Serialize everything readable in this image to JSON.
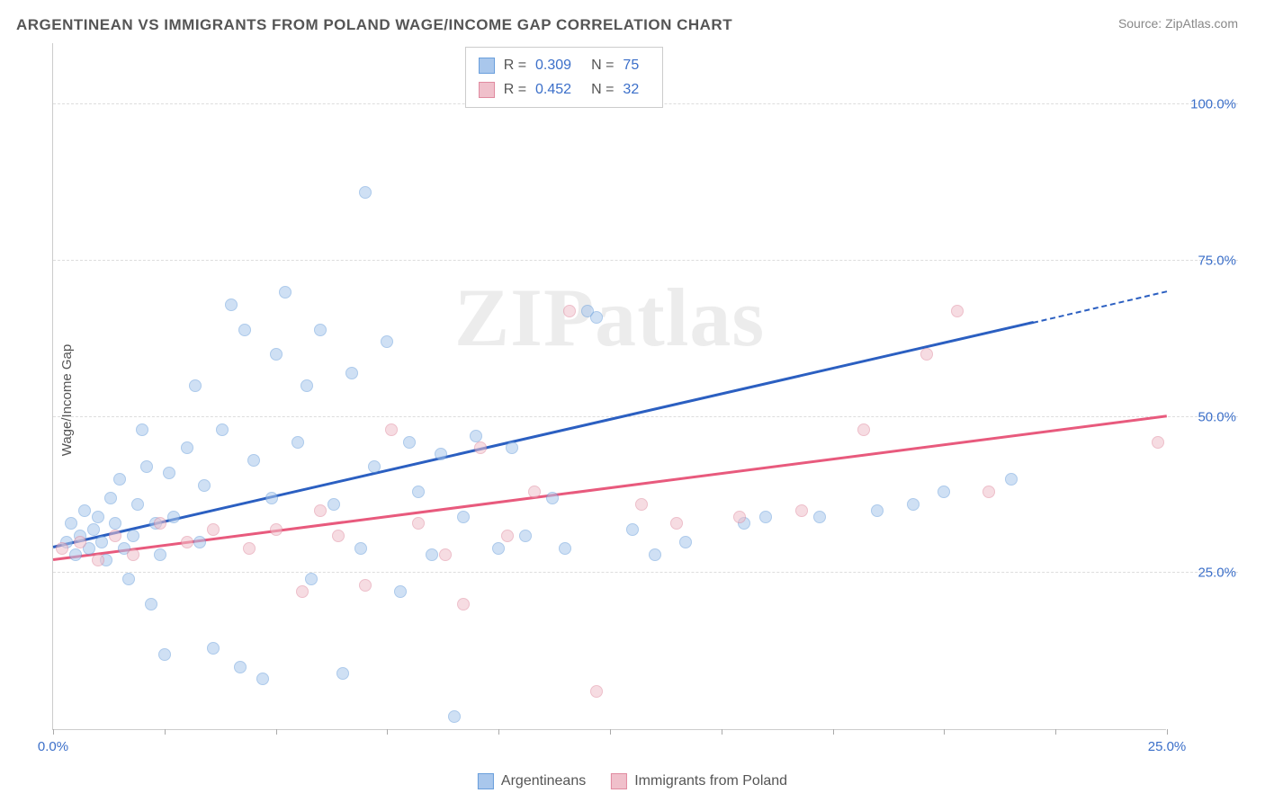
{
  "title": "ARGENTINEAN VS IMMIGRANTS FROM POLAND WAGE/INCOME GAP CORRELATION CHART",
  "source": "Source: ZipAtlas.com",
  "watermark": "ZIPatlas",
  "ylabel": "Wage/Income Gap",
  "chart": {
    "type": "scatter",
    "background_color": "#ffffff",
    "grid_color": "#dddddd",
    "grid_dashed": true,
    "xlim": [
      0,
      25
    ],
    "ylim": [
      0,
      110
    ],
    "xtick_positions": [
      0,
      2.5,
      5,
      7.5,
      10,
      12.5,
      15,
      17.5,
      20,
      22.5,
      25
    ],
    "xtick_labels": {
      "0": "0.0%",
      "25": "25.0%"
    },
    "ytick_positions": [
      25,
      50,
      75,
      100
    ],
    "ytick_labels": [
      "25.0%",
      "50.0%",
      "75.0%",
      "100.0%"
    ],
    "marker_radius": 7,
    "marker_opacity": 0.55,
    "label_fontsize": 15,
    "tick_color": "#3b6fc9",
    "series": [
      {
        "name": "Argentineans",
        "fill_color": "#a9c7ec",
        "stroke_color": "#6a9fdc",
        "r": 0.309,
        "n": 75,
        "trend": {
          "x0": 0,
          "y0": 29,
          "x1": 22,
          "y1": 65,
          "color": "#2b5fc1",
          "dash_tail": true,
          "x_tail": 25,
          "y_tail": 70
        },
        "points": [
          [
            0.3,
            30
          ],
          [
            0.4,
            33
          ],
          [
            0.5,
            28
          ],
          [
            0.6,
            31
          ],
          [
            0.7,
            35
          ],
          [
            0.8,
            29
          ],
          [
            0.9,
            32
          ],
          [
            1.0,
            34
          ],
          [
            1.1,
            30
          ],
          [
            1.2,
            27
          ],
          [
            1.3,
            37
          ],
          [
            1.4,
            33
          ],
          [
            1.5,
            40
          ],
          [
            1.6,
            29
          ],
          [
            1.7,
            24
          ],
          [
            1.8,
            31
          ],
          [
            1.9,
            36
          ],
          [
            2.0,
            48
          ],
          [
            2.1,
            42
          ],
          [
            2.2,
            20
          ],
          [
            2.3,
            33
          ],
          [
            2.4,
            28
          ],
          [
            2.5,
            12
          ],
          [
            2.6,
            41
          ],
          [
            2.7,
            34
          ],
          [
            3.0,
            45
          ],
          [
            3.2,
            55
          ],
          [
            3.3,
            30
          ],
          [
            3.4,
            39
          ],
          [
            3.6,
            13
          ],
          [
            3.8,
            48
          ],
          [
            4.0,
            68
          ],
          [
            4.2,
            10
          ],
          [
            4.3,
            64
          ],
          [
            4.5,
            43
          ],
          [
            4.7,
            8
          ],
          [
            4.9,
            37
          ],
          [
            5.0,
            60
          ],
          [
            5.2,
            70
          ],
          [
            5.5,
            46
          ],
          [
            5.7,
            55
          ],
          [
            5.8,
            24
          ],
          [
            6.0,
            64
          ],
          [
            6.3,
            36
          ],
          [
            6.5,
            9
          ],
          [
            6.7,
            57
          ],
          [
            6.9,
            29
          ],
          [
            7.0,
            86
          ],
          [
            7.2,
            42
          ],
          [
            7.5,
            62
          ],
          [
            7.8,
            22
          ],
          [
            8.0,
            46
          ],
          [
            8.2,
            38
          ],
          [
            8.5,
            28
          ],
          [
            8.7,
            44
          ],
          [
            9.0,
            2
          ],
          [
            9.2,
            34
          ],
          [
            9.5,
            47
          ],
          [
            10.0,
            29
          ],
          [
            10.3,
            45
          ],
          [
            10.6,
            31
          ],
          [
            11.2,
            37
          ],
          [
            11.5,
            29
          ],
          [
            12.0,
            67
          ],
          [
            12.2,
            66
          ],
          [
            13.0,
            32
          ],
          [
            13.5,
            28
          ],
          [
            14.2,
            30
          ],
          [
            15.5,
            33
          ],
          [
            16.0,
            34
          ],
          [
            17.2,
            34
          ],
          [
            18.5,
            35
          ],
          [
            19.3,
            36
          ],
          [
            20.0,
            38
          ],
          [
            21.5,
            40
          ]
        ]
      },
      {
        "name": "Immigrants from Poland",
        "fill_color": "#f0c0cb",
        "stroke_color": "#e08ba0",
        "r": 0.452,
        "n": 32,
        "trend": {
          "x0": 0,
          "y0": 27,
          "x1": 25,
          "y1": 50,
          "color": "#e85a7d",
          "dash_tail": false
        },
        "points": [
          [
            0.2,
            29
          ],
          [
            0.6,
            30
          ],
          [
            1.0,
            27
          ],
          [
            1.4,
            31
          ],
          [
            1.8,
            28
          ],
          [
            2.4,
            33
          ],
          [
            3.0,
            30
          ],
          [
            3.6,
            32
          ],
          [
            4.4,
            29
          ],
          [
            5.0,
            32
          ],
          [
            5.6,
            22
          ],
          [
            6.0,
            35
          ],
          [
            6.4,
            31
          ],
          [
            7.0,
            23
          ],
          [
            7.6,
            48
          ],
          [
            8.2,
            33
          ],
          [
            8.8,
            28
          ],
          [
            9.2,
            20
          ],
          [
            9.6,
            45
          ],
          [
            10.2,
            31
          ],
          [
            10.8,
            38
          ],
          [
            11.6,
            67
          ],
          [
            12.2,
            6
          ],
          [
            13.2,
            36
          ],
          [
            14.0,
            33
          ],
          [
            15.4,
            34
          ],
          [
            16.8,
            35
          ],
          [
            18.2,
            48
          ],
          [
            19.6,
            60
          ],
          [
            20.3,
            67
          ],
          [
            21.0,
            38
          ],
          [
            24.8,
            46
          ]
        ]
      }
    ]
  },
  "legend": {
    "items": [
      {
        "label": "Argentineans",
        "fill": "#a9c7ec",
        "stroke": "#6a9fdc"
      },
      {
        "label": "Immigrants from Poland",
        "fill": "#f0c0cb",
        "stroke": "#e08ba0"
      }
    ]
  }
}
